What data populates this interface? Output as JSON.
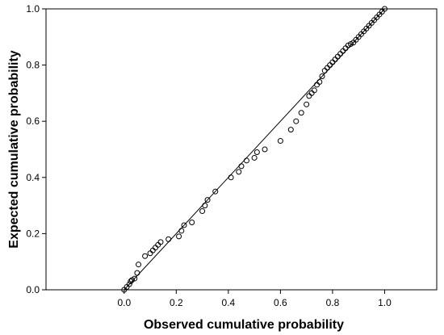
{
  "chart_data": {
    "type": "scatter",
    "title": "",
    "xlabel": "Observed cumulative probability",
    "ylabel": "Expected cumulative probability",
    "xlim": [
      -0.3,
      1.2
    ],
    "ylim": [
      0.0,
      1.0
    ],
    "x_ticks": [
      "0.0",
      "0.2",
      "0.4",
      "0.6",
      "0.8",
      "1.0"
    ],
    "y_ticks": [
      "0.0",
      "0.2",
      "0.4",
      "0.6",
      "0.8",
      "1.0"
    ],
    "x_tick_values": [
      0.0,
      0.2,
      0.4,
      0.6,
      0.8,
      1.0
    ],
    "y_tick_values": [
      0.0,
      0.2,
      0.4,
      0.6,
      0.8,
      1.0
    ],
    "grid": false,
    "reference_line": {
      "from": [
        0.0,
        0.0
      ],
      "to": [
        1.0,
        1.0
      ]
    },
    "marker": "open-circle",
    "colors": {
      "points": "#000000",
      "line": "#000000",
      "frame": "#000000",
      "background": "#ffffff"
    },
    "series": [
      {
        "x": [
          0.0,
          0.01,
          0.02,
          0.025,
          0.03,
          0.04,
          0.05,
          0.055,
          0.08,
          0.1,
          0.11,
          0.12,
          0.13,
          0.14,
          0.17,
          0.21,
          0.22,
          0.23,
          0.26,
          0.3,
          0.31,
          0.32,
          0.35,
          0.41,
          0.44,
          0.45,
          0.47,
          0.5,
          0.51,
          0.54,
          0.6,
          0.64,
          0.66,
          0.68,
          0.7,
          0.71,
          0.72,
          0.73,
          0.74,
          0.75,
          0.76,
          0.77,
          0.78,
          0.79,
          0.8,
          0.81,
          0.82,
          0.83,
          0.84,
          0.85,
          0.86,
          0.87,
          0.88,
          0.89,
          0.9,
          0.91,
          0.92,
          0.93,
          0.94,
          0.95,
          0.96,
          0.97,
          0.98,
          0.99,
          1.0
        ],
        "y": [
          0.0,
          0.01,
          0.02,
          0.03,
          0.035,
          0.04,
          0.06,
          0.09,
          0.12,
          0.13,
          0.14,
          0.15,
          0.16,
          0.17,
          0.18,
          0.19,
          0.21,
          0.23,
          0.24,
          0.28,
          0.3,
          0.32,
          0.35,
          0.4,
          0.42,
          0.44,
          0.46,
          0.47,
          0.49,
          0.5,
          0.53,
          0.57,
          0.6,
          0.63,
          0.66,
          0.69,
          0.7,
          0.71,
          0.73,
          0.74,
          0.76,
          0.78,
          0.79,
          0.8,
          0.81,
          0.82,
          0.83,
          0.84,
          0.85,
          0.86,
          0.87,
          0.875,
          0.88,
          0.89,
          0.9,
          0.91,
          0.92,
          0.93,
          0.94,
          0.95,
          0.96,
          0.97,
          0.98,
          0.99,
          1.0
        ]
      }
    ]
  }
}
